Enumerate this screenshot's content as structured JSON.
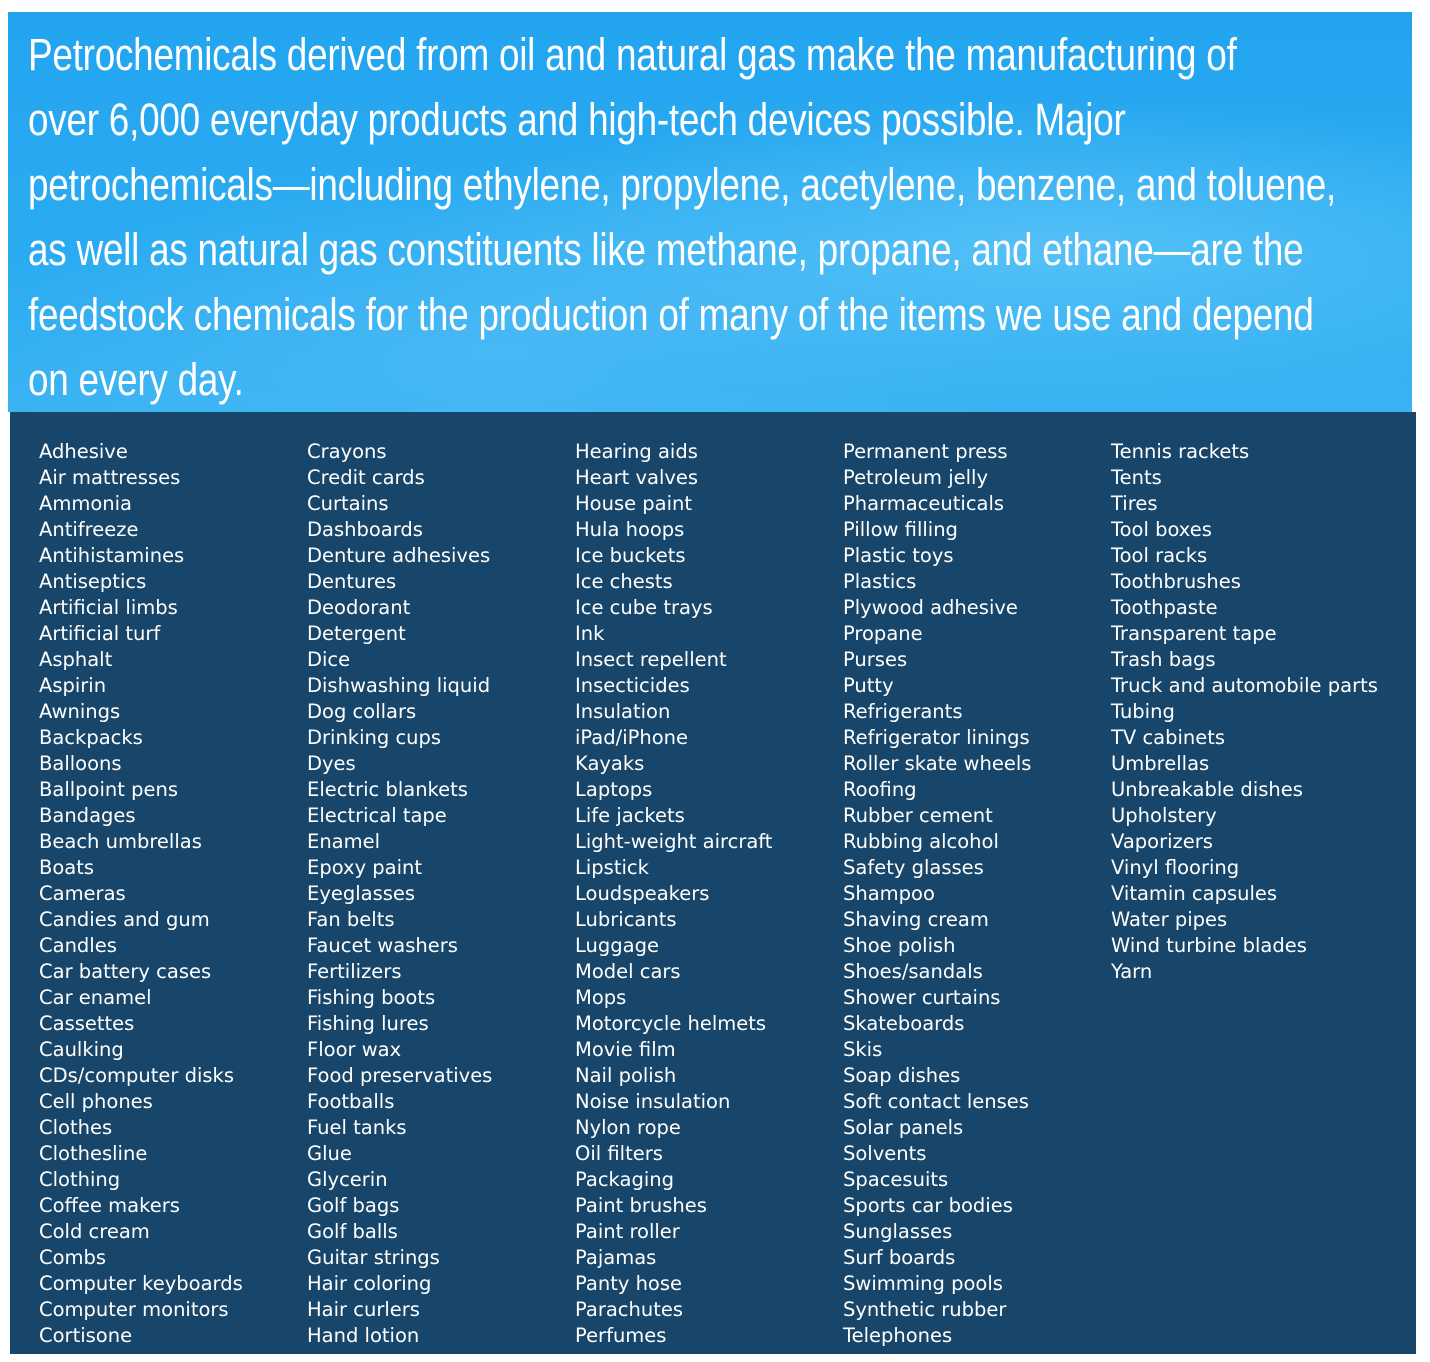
{
  "colors": {
    "hero_background": "#29a8f0",
    "list_background": "#17466a",
    "text": "#ffffff"
  },
  "header": {
    "lines": [
      "Petrochemicals derived from oil and natural gas make the manufacturing of",
      "over 6,000 everyday products and high-tech devices possible. Major",
      "petrochemicals—including ethylene, propylene, acetylene, benzene, and toluene,",
      "as well as natural gas constituents like methane, propane, and ethane—are the",
      "feedstock chemicals for the production of many of the items we use and depend",
      "on every day."
    ]
  },
  "columns": [
    [
      "Adhesive",
      "Air mattresses",
      "Ammonia",
      "Antifreeze",
      "Antihistamines",
      "Antiseptics",
      "Artificial limbs",
      "Artificial turf",
      "Asphalt",
      "Aspirin",
      "Awnings",
      "Backpacks",
      "Balloons",
      "Ballpoint pens",
      "Bandages",
      "Beach umbrellas",
      "Boats",
      "Cameras",
      "Candies and gum",
      "Candles",
      "Car battery cases",
      "Car enamel",
      "Cassettes",
      "Caulking",
      "CDs/computer disks",
      "Cell phones",
      "Clothes",
      "Clothesline",
      "Clothing",
      "Coffee makers",
      "Cold cream",
      "Combs",
      "Computer keyboards",
      "Computer monitors",
      "Cortisone"
    ],
    [
      "Crayons",
      "Credit cards",
      "Curtains",
      "Dashboards",
      "Denture adhesives",
      "Dentures",
      "Deodorant",
      "Detergent",
      "Dice",
      "Dishwashing liquid",
      "Dog collars",
      "Drinking cups",
      "Dyes",
      "Electric blankets",
      "Electrical tape",
      "Enamel",
      "Epoxy paint",
      "Eyeglasses",
      "Fan belts",
      "Faucet washers",
      "Fertilizers",
      "Fishing boots",
      "Fishing lures",
      "Floor wax",
      "Food preservatives",
      "Footballs",
      "Fuel tanks",
      "Glue",
      "Glycerin",
      "Golf bags",
      "Golf balls",
      "Guitar strings",
      "Hair coloring",
      "Hair curlers",
      "Hand lotion"
    ],
    [
      "Hearing aids",
      "Heart valves",
      "House paint",
      "Hula hoops",
      "Ice buckets",
      "Ice chests",
      "Ice cube trays",
      "Ink",
      "Insect repellent",
      "Insecticides",
      "Insulation",
      "iPad/iPhone",
      "Kayaks",
      "Laptops",
      "Life jackets",
      "Light-weight aircraft",
      "Lipstick",
      "Loudspeakers",
      "Lubricants",
      "Luggage",
      "Model cars",
      "Mops",
      "Motorcycle helmets",
      "Movie film",
      "Nail polish",
      "Noise insulation",
      "Nylon rope",
      "Oil filters",
      "Packaging",
      "Paint brushes",
      "Paint roller",
      "Pajamas",
      "Panty hose",
      "Parachutes",
      "Perfumes"
    ],
    [
      "Permanent press",
      "Petroleum jelly",
      "Pharmaceuticals",
      "Pillow filling",
      "Plastic toys",
      "Plastics",
      "Plywood adhesive",
      "Propane",
      "Purses",
      "Putty",
      "Refrigerants",
      "Refrigerator linings",
      "Roller skate wheels",
      "Roofing",
      "Rubber cement",
      "Rubbing alcohol",
      "Safety glasses",
      "Shampoo",
      "Shaving cream",
      "Shoe polish",
      "Shoes/sandals",
      "Shower curtains",
      "Skateboards",
      "Skis",
      "Soap dishes",
      "Soft contact lenses",
      "Solar panels",
      "Solvents",
      "Spacesuits",
      "Sports car bodies",
      "Sunglasses",
      "Surf boards",
      "Swimming pools",
      "Synthetic rubber",
      "Telephones"
    ],
    [
      "Tennis rackets",
      "Tents",
      "Tires",
      "Tool boxes",
      "Tool racks",
      "Toothbrushes",
      "Toothpaste",
      "Transparent tape",
      "Trash bags",
      "Truck and automobile parts",
      "Tubing",
      "TV cabinets",
      "Umbrellas",
      "Unbreakable dishes",
      "Upholstery",
      "Vaporizers",
      "Vinyl flooring",
      "Vitamin capsules",
      "Water pipes",
      "Wind turbine blades",
      "Yarn"
    ]
  ]
}
